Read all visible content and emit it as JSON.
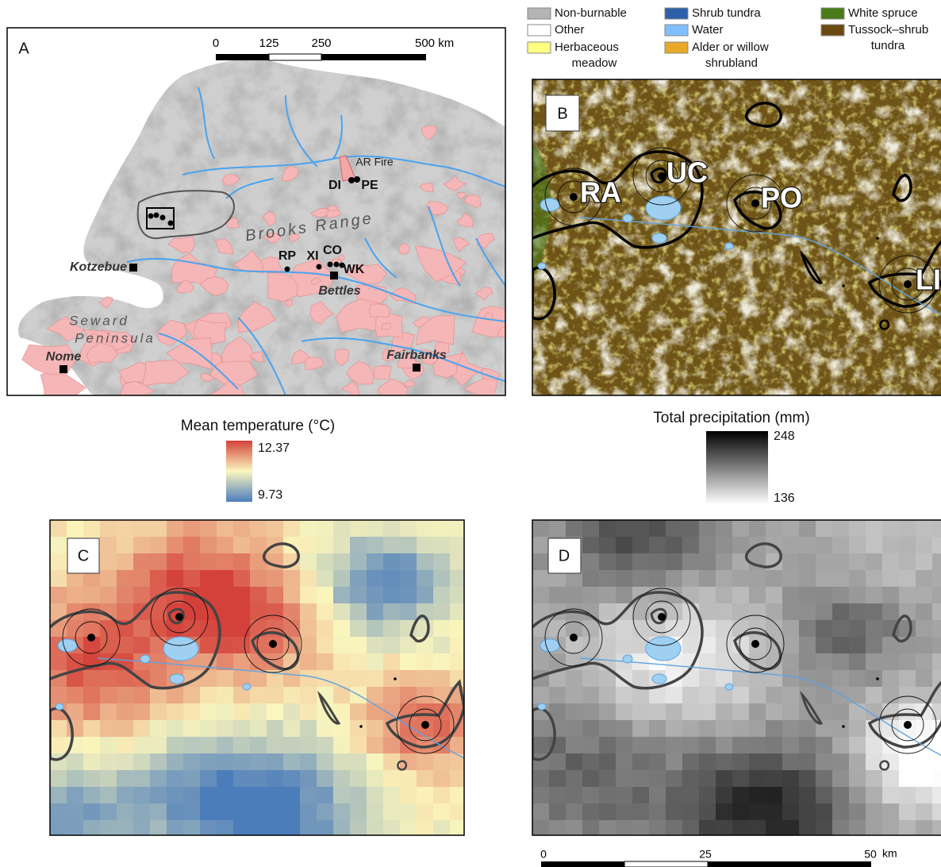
{
  "legend": {
    "items": [
      {
        "label": [
          "Non-burnable"
        ],
        "color": "#b4b4b4"
      },
      {
        "label": [
          "Other"
        ],
        "color": "#ffffff"
      },
      {
        "label": [
          "Herbaceous",
          "meadow"
        ],
        "color": "#ffff80"
      },
      {
        "label": [
          "Shrub tundra"
        ],
        "color": "#2f5fa8"
      },
      {
        "label": [
          "Water"
        ],
        "color": "#80bfff"
      },
      {
        "label": [
          "Alder or willow",
          "shrubland"
        ],
        "color": "#e8a92a"
      },
      {
        "label": [
          "White spruce"
        ],
        "color": "#4a7a1a"
      },
      {
        "label": [
          "Tussock–shrub",
          "tundra"
        ],
        "color": "#6b4a12"
      }
    ]
  },
  "panel_a": {
    "label": "A",
    "scale_bar": [
      "0",
      "125",
      "250",
      "500 km"
    ],
    "places": [
      "AR Fire",
      "DI",
      "PE",
      "Brooks Range",
      "RP",
      "XI",
      "CO",
      "WK",
      "Kotzebue",
      "Bettles",
      "Seward",
      "Peninsula",
      "Nome",
      "Fairbanks"
    ]
  },
  "panel_b": {
    "label": "B",
    "sites": [
      "RA",
      "UC",
      "PO",
      "LI"
    ]
  },
  "temperature_legend": {
    "title": "Mean temperature (°C)",
    "max": 12.37,
    "min": 9.73,
    "colormap": [
      "#d4413a",
      "#fbf6bd",
      "#4c7dbb"
    ]
  },
  "precipitation_legend": {
    "title": "Total precipitation (mm)",
    "max": 248,
    "min": 136,
    "colormap": [
      "#000000",
      "#ffffff"
    ]
  },
  "panel_c": {
    "label": "C"
  },
  "panel_d": {
    "label": "D"
  },
  "scale_bar": {
    "labels": [
      "0",
      "25",
      "50"
    ],
    "unit": "km"
  }
}
